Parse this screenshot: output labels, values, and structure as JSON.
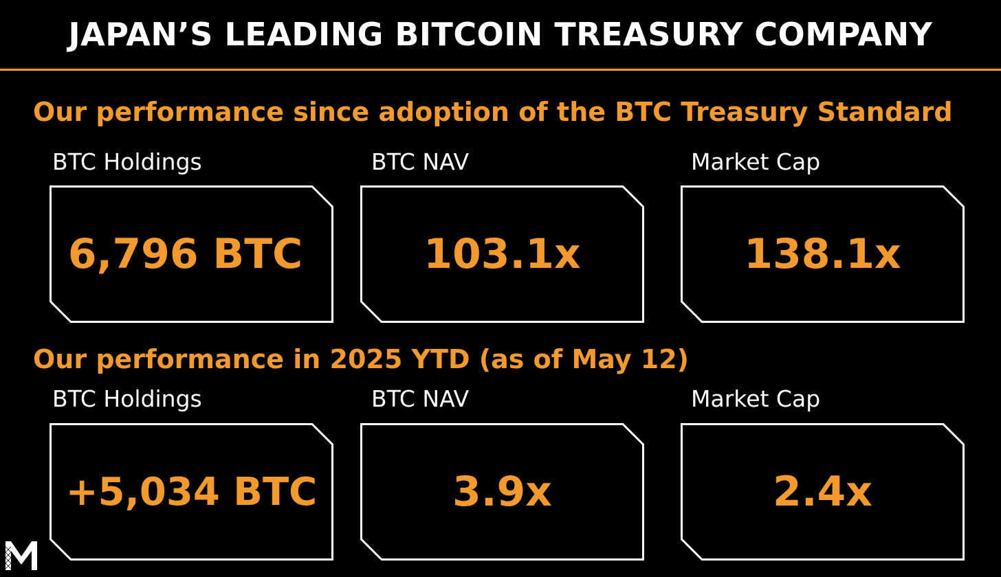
{
  "header": {
    "title": "JAPAN’S LEADING BITCOIN TREASURY COMPANY"
  },
  "sections": [
    {
      "heading": "Our performance since adoption of the BTC Treasury Standard",
      "metrics": [
        {
          "label": "BTC Holdings",
          "value": "6,796 BTC"
        },
        {
          "label": "BTC NAV",
          "value": "103.1x"
        },
        {
          "label": "Market Cap",
          "value": "138.1x"
        }
      ]
    },
    {
      "heading": "Our performance in 2025 YTD (as of May 12)",
      "metrics": [
        {
          "label": "BTC Holdings",
          "value": "+5,034 BTC"
        },
        {
          "label": "BTC NAV",
          "value": "3.9x"
        },
        {
          "label": "Market Cap",
          "value": "2.4x"
        }
      ]
    }
  ],
  "colors": {
    "accent": "#f39a2e",
    "background": "#000000",
    "text": "#ffffff"
  },
  "logo": {
    "icon": "m-logo-icon"
  }
}
